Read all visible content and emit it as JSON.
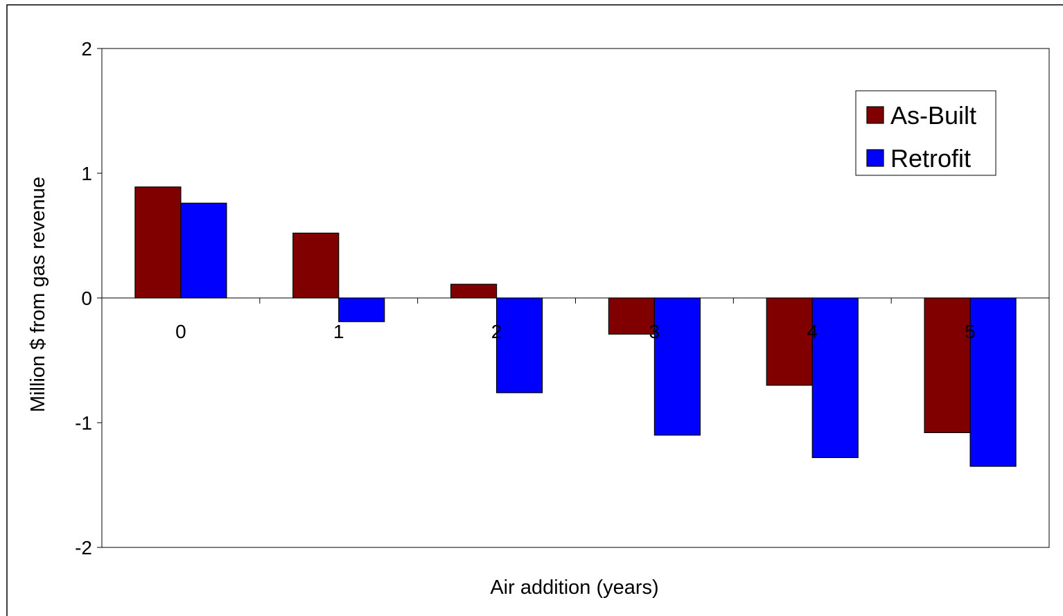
{
  "chart_data": {
    "type": "bar",
    "title": "",
    "xlabel": "Air addition (years)",
    "ylabel": "Million $ from gas revenue",
    "categories": [
      "0",
      "1",
      "2",
      "3",
      "4",
      "5"
    ],
    "series": [
      {
        "name": "As-Built",
        "color": "#800000",
        "values": [
          0.89,
          0.52,
          0.11,
          -0.29,
          -0.7,
          -1.08
        ]
      },
      {
        "name": "Retrofit",
        "color": "#0000FF",
        "values": [
          0.76,
          -0.19,
          -0.76,
          -1.1,
          -1.28,
          -1.35
        ]
      }
    ],
    "ylim": [
      -2,
      2
    ],
    "yticks": [
      2,
      1,
      0,
      -1,
      -2
    ],
    "ytick_labels": [
      "2",
      "1",
      "0",
      "-1",
      "-2"
    ],
    "grid": false,
    "legend": "top-right"
  }
}
